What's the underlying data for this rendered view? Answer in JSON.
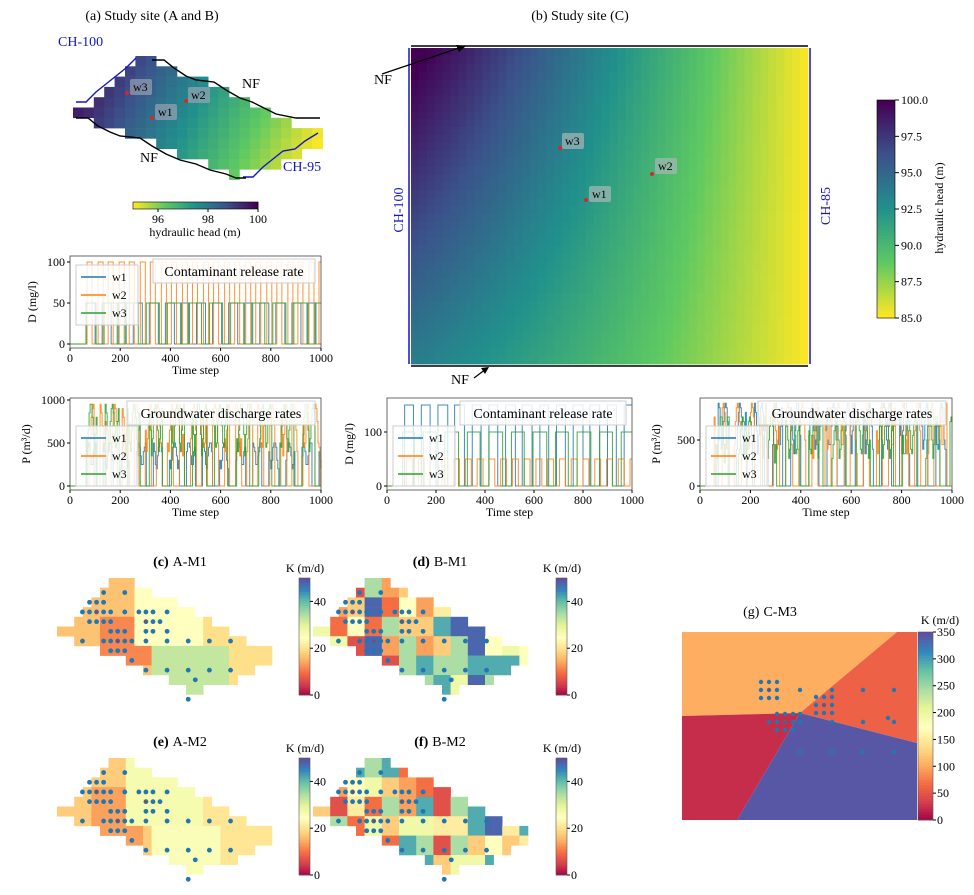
{
  "panels": {
    "a": {
      "title": "(a) Study site (A and B)",
      "ch_left": "CH-100",
      "ch_right": "CH-95",
      "nf_top": "NF",
      "nf_bottom": "NF",
      "wells": [
        "w1",
        "w2",
        "w3"
      ],
      "colorbar": {
        "label": "hydraulic head (m)",
        "ticks": [
          "96",
          "98",
          "100"
        ],
        "range": [
          95,
          100
        ],
        "colormap": "viridis_r"
      }
    },
    "b": {
      "title": "(b) Study site (C)",
      "ch_left": "CH-100",
      "ch_right": "CH-85",
      "nf_top": "NF",
      "nf_bottom": "NF",
      "wells": [
        "w1",
        "w2",
        "w3"
      ],
      "colorbar": {
        "label": "hydraulic head (m)",
        "ticks": [
          "100.0",
          "97.5",
          "95.0",
          "92.5",
          "90.0",
          "87.5",
          "85.0"
        ],
        "range": [
          85,
          100
        ],
        "colormap": "viridis_r"
      }
    },
    "c": {
      "letter": "(c)",
      "name": "A-M1",
      "colorbar": {
        "label": "K (m/d)",
        "ticks": [
          "0",
          "20",
          "40"
        ],
        "range": [
          0,
          50
        ],
        "colormap": "Spectral"
      }
    },
    "d": {
      "letter": "(d)",
      "name": "B-M1",
      "colorbar": {
        "label": "K (m/d)",
        "ticks": [
          "0",
          "20",
          "40"
        ],
        "range": [
          0,
          50
        ],
        "colormap": "Spectral"
      }
    },
    "e": {
      "letter": "(e)",
      "name": "A-M2",
      "colorbar": {
        "label": "K (m/d)",
        "ticks": [
          "0",
          "20",
          "40"
        ],
        "range": [
          0,
          50
        ],
        "colormap": "Spectral"
      }
    },
    "f": {
      "letter": "(f)",
      "name": "B-M2",
      "colorbar": {
        "label": "K (m/d)",
        "ticks": [
          "0",
          "20",
          "40"
        ],
        "range": [
          0,
          50
        ],
        "colormap": "Spectral"
      }
    },
    "g": {
      "letter": "(g)",
      "name": "C-M3",
      "colorbar": {
        "label": "K (m/d)",
        "ticks": [
          "0",
          "50",
          "100",
          "150",
          "200",
          "250",
          "300",
          "350"
        ],
        "range": [
          0,
          350
        ],
        "colormap": "Spectral"
      }
    }
  },
  "colors": {
    "w1": "#1f77b4",
    "w2": "#ff7f0e",
    "w3": "#2ca02c",
    "well_marker": "#1f77b4",
    "observation_marker": "#d62728",
    "boundary_ch": "#1515c8",
    "boundary_nf": "#000000"
  },
  "chart_data": [
    {
      "type": "line",
      "title": "Contaminant release rate",
      "xlabel": "Time step",
      "ylabel": "D (mg/l)",
      "xlim": [
        0,
        1000
      ],
      "ylim": [
        0,
        105
      ],
      "xticks": [
        "0",
        "200",
        "400",
        "600",
        "800",
        "1000"
      ],
      "yticks": [
        "0",
        "50",
        "100"
      ],
      "legend": "upper-left",
      "series": [
        {
          "name": "w1",
          "pulse_level": 70
        },
        {
          "name": "w2",
          "pulse_level": 100
        },
        {
          "name": "w3",
          "pulse_level": 50
        }
      ]
    },
    {
      "type": "line",
      "title": "Groundwater discharge rates",
      "xlabel": "Time step",
      "ylabel": "P (m³/d)",
      "xlim": [
        0,
        1000
      ],
      "ylim": [
        0,
        1000
      ],
      "xticks": [
        "0",
        "200",
        "400",
        "600",
        "800",
        "1000"
      ],
      "yticks": [
        "0",
        "500",
        "1000"
      ],
      "legend": "upper-left",
      "series": [
        {
          "name": "w1",
          "peak_level": 500
        },
        {
          "name": "w2",
          "peak_level": 950
        },
        {
          "name": "w3",
          "peak_level": 950
        }
      ]
    },
    {
      "type": "line",
      "title": "Contaminant release rate",
      "xlabel": "Time step",
      "ylabel": "D (mg/l)",
      "xlim": [
        0,
        1000
      ],
      "ylim": [
        0,
        155
      ],
      "xticks": [
        "0",
        "200",
        "400",
        "600",
        "800",
        "1000"
      ],
      "yticks": [
        "0",
        "100"
      ],
      "legend": "upper-left",
      "series": [
        {
          "name": "w1",
          "pulse_level": 150
        },
        {
          "name": "w2",
          "pulse_level": 50
        },
        {
          "name": "w3",
          "pulse_level": 100
        }
      ]
    },
    {
      "type": "line",
      "title": "Groundwater discharge rates",
      "xlabel": "Time step",
      "ylabel": "P (m³/d)",
      "xlim": [
        0,
        1000
      ],
      "ylim": [
        0,
        950
      ],
      "xticks": [
        "0",
        "200",
        "400",
        "600",
        "800",
        "1000"
      ],
      "yticks": [
        "0",
        "500"
      ],
      "legend": "upper-left",
      "series": [
        {
          "name": "w1",
          "peak_level": 900
        },
        {
          "name": "w2",
          "peak_level": 900
        },
        {
          "name": "w3",
          "peak_level": 750
        }
      ]
    }
  ]
}
